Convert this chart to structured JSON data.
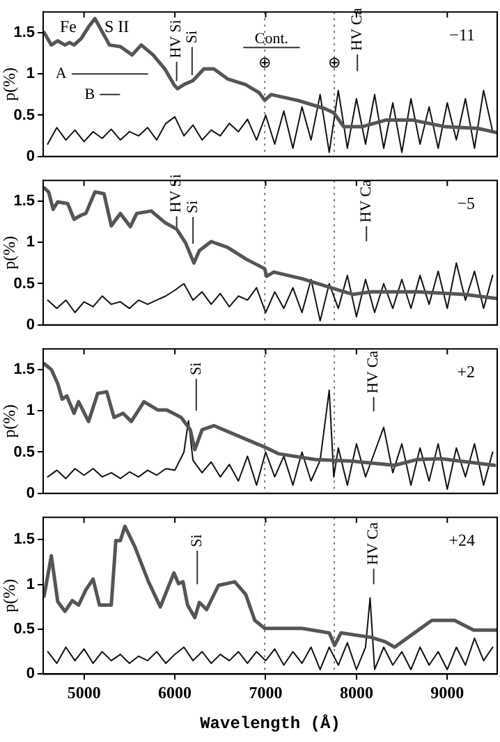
{
  "chart_data": [
    {
      "type": "line",
      "xlim": [
        4550,
        9550
      ],
      "xticks": [
        5000,
        6000,
        7000,
        8000,
        9000
      ],
      "ylim": [
        0,
        1.75
      ],
      "yticks": [
        0,
        0.5,
        1,
        1.5
      ],
      "ylabel": "p(%)",
      "tick_labels": "y",
      "legend": false,
      "grid": false,
      "marker": "none",
      "ref_lines": [
        {
          "axis": "x",
          "value": 6990,
          "color": "#777777",
          "line_style": "dotted"
        },
        {
          "axis": "x",
          "value": 7756,
          "color": "#777777",
          "line_style": "dotted"
        }
      ],
      "series": [
        {
          "color": "#555555",
          "x": [
            4560,
            4640,
            4710,
            4790,
            4840,
            4890,
            4970,
            5050,
            5120,
            5170,
            5280,
            5400,
            5530,
            5630,
            5760,
            5890,
            5990,
            6030,
            6100,
            6200,
            6320,
            6430,
            6580,
            6780,
            6930,
            6990,
            7060,
            7350,
            7650,
            7750,
            7860,
            8060,
            8320,
            8620,
            8980,
            9340,
            9540
          ],
          "values": [
            1.5,
            1.35,
            1.4,
            1.35,
            1.38,
            1.35,
            1.43,
            1.57,
            1.67,
            1.57,
            1.35,
            1.33,
            1.23,
            1.35,
            1.23,
            1.06,
            0.87,
            0.82,
            0.87,
            0.92,
            1.06,
            1.06,
            0.94,
            0.87,
            0.77,
            0.68,
            0.75,
            0.68,
            0.58,
            0.53,
            0.36,
            0.36,
            0.44,
            0.44,
            0.36,
            0.34,
            0.29
          ]
        },
        {
          "color": "#111111",
          "x": [
            4600,
            4700,
            4800,
            4900,
            5000,
            5100,
            5200,
            5300,
            5400,
            5500,
            5600,
            5700,
            5800,
            5900,
            6000,
            6100,
            6200,
            6300,
            6400,
            6500,
            6600,
            6700,
            6800,
            6900,
            7000,
            7100,
            7200,
            7300,
            7400,
            7500,
            7600,
            7700,
            7800,
            7900,
            8000,
            8100,
            8200,
            8300,
            8400,
            8500,
            8600,
            8700,
            8800,
            8900,
            9000,
            9100,
            9200,
            9300,
            9400,
            9500
          ],
          "values": [
            0.15,
            0.35,
            0.2,
            0.32,
            0.18,
            0.3,
            0.22,
            0.33,
            0.2,
            0.3,
            0.25,
            0.35,
            0.2,
            0.4,
            0.48,
            0.25,
            0.38,
            0.2,
            0.32,
            0.25,
            0.4,
            0.3,
            0.45,
            0.2,
            0.5,
            0.15,
            0.55,
            0.1,
            0.6,
            0.2,
            0.75,
            0.05,
            0.8,
            0.1,
            0.7,
            0.15,
            0.75,
            0.1,
            0.65,
            0.05,
            0.7,
            0.15,
            0.6,
            0.1,
            0.65,
            0.2,
            0.7,
            0.1,
            0.8,
            0.3
          ]
        },
        {
          "name": "A",
          "color": "#333333",
          "x": [
            4870,
            5700
          ],
          "values": [
            1.0,
            1.0
          ]
        },
        {
          "name": "B",
          "color": "#333333",
          "x": [
            5180,
            5390
          ],
          "values": [
            0.75,
            0.75
          ]
        },
        {
          "color": "#333333",
          "x": [
            6760,
            7370
          ],
          "values": [
            1.32,
            1.32
          ]
        },
        {
          "color": "#333333",
          "x": [
            6020,
            6020
          ],
          "values": [
            0.92,
            1.14
          ]
        },
        {
          "color": "#333333",
          "x": [
            6190,
            6190
          ],
          "values": [
            0.99,
            1.32
          ]
        },
        {
          "color": "#333333",
          "x": [
            8010,
            8010
          ],
          "values": [
            1.04,
            1.23
          ]
        }
      ],
      "annotations": [
        "Fe",
        "S II",
        {
          "text": "Cont.",
          "x": 7065,
          "y": 1.42
        },
        {
          "text": "⊕",
          "x": 6990,
          "y": 1.13
        },
        {
          "text": "⊕",
          "x": 7756,
          "y": 1.13
        },
        {
          "text": "HV Si",
          "x": 6020,
          "y": 1.14
        },
        {
          "text": "Si",
          "x": 6190,
          "y": 1.32
        },
        {
          "text": "HV Ca",
          "x": 8010,
          "y": 1.23
        },
        "−11"
      ]
    },
    {
      "type": "line",
      "xlim": [
        4550,
        9550
      ],
      "xticks": [
        5000,
        6000,
        7000,
        8000,
        9000
      ],
      "ylim": [
        0,
        1.75
      ],
      "yticks": [
        0,
        0.5,
        1,
        1.5
      ],
      "ylabel": "p(%)",
      "tick_labels": "y",
      "legend": false,
      "grid": false,
      "marker": "none",
      "ref_lines": [
        {
          "axis": "x",
          "value": 6990,
          "color": "#777777",
          "line_style": "dotted"
        },
        {
          "axis": "x",
          "value": 7756,
          "color": "#777777",
          "line_style": "dotted"
        }
      ],
      "series": [
        {
          "color": "#555555",
          "x": [
            4560,
            4610,
            4660,
            4710,
            4820,
            4890,
            4970,
            5020,
            5120,
            5220,
            5300,
            5400,
            5510,
            5580,
            5740,
            5890,
            6020,
            6120,
            6210,
            6270,
            6400,
            6580,
            6780,
            6990,
            7010,
            7090,
            7400,
            7750,
            7960,
            8160,
            8670,
            9190,
            9540
          ],
          "values": [
            1.66,
            1.61,
            1.4,
            1.49,
            1.47,
            1.28,
            1.33,
            1.35,
            1.61,
            1.59,
            1.2,
            1.35,
            1.19,
            1.35,
            1.38,
            1.24,
            1.16,
            0.99,
            0.75,
            0.9,
            1.01,
            0.94,
            0.8,
            0.68,
            0.59,
            0.64,
            0.56,
            0.44,
            0.37,
            0.4,
            0.4,
            0.37,
            0.32
          ]
        },
        {
          "color": "#111111",
          "x": [
            4600,
            4700,
            4800,
            4900,
            5000,
            5100,
            5200,
            5300,
            5400,
            5500,
            5600,
            5700,
            5800,
            5900,
            6000,
            6100,
            6200,
            6300,
            6400,
            6500,
            6600,
            6700,
            6800,
            6900,
            7000,
            7100,
            7200,
            7300,
            7400,
            7500,
            7600,
            7700,
            7800,
            7900,
            8000,
            8100,
            8200,
            8300,
            8400,
            8500,
            8600,
            8700,
            8800,
            8900,
            9000,
            9100,
            9200,
            9300,
            9400,
            9500
          ],
          "values": [
            0.3,
            0.2,
            0.3,
            0.15,
            0.28,
            0.22,
            0.35,
            0.25,
            0.28,
            0.2,
            0.3,
            0.25,
            0.3,
            0.35,
            0.42,
            0.5,
            0.3,
            0.4,
            0.25,
            0.38,
            0.22,
            0.35,
            0.3,
            0.45,
            0.15,
            0.4,
            0.2,
            0.45,
            0.15,
            0.55,
            0.05,
            0.5,
            0.2,
            0.6,
            0.1,
            0.55,
            0.15,
            0.5,
            0.2,
            0.55,
            0.2,
            0.6,
            0.25,
            0.65,
            0.2,
            0.75,
            0.3,
            0.65,
            0.2,
            0.6
          ]
        },
        {
          "color": "#333333",
          "x": [
            6020,
            6020
          ],
          "values": [
            1.16,
            1.31
          ]
        },
        {
          "color": "#333333",
          "x": [
            6200,
            6200
          ],
          "values": [
            0.99,
            1.3
          ]
        },
        {
          "color": "#333333",
          "x": [
            8110,
            8110
          ],
          "values": [
            1.02,
            1.19
          ]
        }
      ],
      "annotations": [
        {
          "text": "HV Si",
          "x": 6020,
          "y": 1.31
        },
        {
          "text": "Si",
          "x": 6200,
          "y": 1.3
        },
        {
          "text": "HV Ca",
          "x": 8110,
          "y": 1.19
        },
        "−5"
      ]
    },
    {
      "type": "line",
      "xlim": [
        4550,
        9550
      ],
      "xticks": [
        5000,
        6000,
        7000,
        8000,
        9000
      ],
      "ylim": [
        0,
        1.75
      ],
      "yticks": [
        0,
        0.5,
        1,
        1.5
      ],
      "ylabel": "p(%)",
      "tick_labels": "y",
      "legend": false,
      "grid": false,
      "marker": "none",
      "ref_lines": [
        {
          "axis": "x",
          "value": 6990,
          "color": "#777777",
          "line_style": "dotted"
        },
        {
          "axis": "x",
          "value": 7756,
          "color": "#777777",
          "line_style": "dotted"
        }
      ],
      "series": [
        {
          "color": "#555555",
          "x": [
            4560,
            4640,
            4710,
            4760,
            4810,
            4890,
            4940,
            5050,
            5150,
            5250,
            5330,
            5430,
            5520,
            5660,
            5810,
            5910,
            6070,
            6170,
            6220,
            6300,
            6430,
            6730,
            6990,
            7140,
            7550,
            7960,
            8420,
            8670,
            8930,
            9520
          ],
          "values": [
            1.57,
            1.5,
            1.33,
            1.14,
            1.18,
            0.97,
            1.11,
            0.87,
            1.21,
            1.23,
            0.92,
            0.97,
            0.87,
            1.11,
            1.01,
            1.01,
            0.92,
            0.77,
            0.53,
            0.77,
            0.82,
            0.68,
            0.56,
            0.48,
            0.41,
            0.39,
            0.34,
            0.41,
            0.42,
            0.34
          ]
        },
        {
          "color": "#111111",
          "x": [
            4600,
            4700,
            4800,
            4900,
            5000,
            5100,
            5200,
            5300,
            5400,
            5500,
            5600,
            5700,
            5800,
            5900,
            6000,
            6100,
            6150,
            6200,
            6300,
            6400,
            6500,
            6600,
            6700,
            6800,
            6900,
            7000,
            7100,
            7200,
            7300,
            7400,
            7500,
            7600,
            7700,
            7750,
            7800,
            7900,
            8000,
            8100,
            8200,
            8300,
            8400,
            8500,
            8600,
            8700,
            8800,
            8900,
            9000,
            9100,
            9200,
            9300,
            9400,
            9500
          ],
          "values": [
            0.2,
            0.28,
            0.18,
            0.3,
            0.22,
            0.3,
            0.2,
            0.25,
            0.18,
            0.26,
            0.2,
            0.28,
            0.22,
            0.3,
            0.28,
            0.5,
            0.88,
            0.4,
            0.25,
            0.38,
            0.2,
            0.35,
            0.15,
            0.45,
            0.1,
            0.5,
            0.2,
            0.45,
            0.1,
            0.5,
            0.15,
            0.4,
            1.25,
            0.2,
            0.55,
            0.1,
            0.6,
            0.2,
            0.5,
            0.8,
            0.25,
            0.6,
            0.1,
            0.55,
            0.15,
            0.6,
            0.05,
            0.55,
            0.2,
            0.6,
            0.1,
            0.5
          ]
        },
        {
          "color": "#333333",
          "x": [
            6236,
            6236
          ],
          "values": [
            1.01,
            1.38
          ]
        },
        {
          "color": "#333333",
          "x": [
            8190,
            8190
          ],
          "values": [
            1.0,
            1.16
          ]
        }
      ],
      "annotations": [
        {
          "text": "Si",
          "x": 6236,
          "y": 1.38
        },
        {
          "text": "HV Ca",
          "x": 8190,
          "y": 1.16
        },
        "+2"
      ]
    },
    {
      "type": "line",
      "xlim": [
        4550,
        9550
      ],
      "xticks": [
        5000,
        6000,
        7000,
        8000,
        9000
      ],
      "ylim": [
        0,
        1.75
      ],
      "yticks": [
        0,
        0.5,
        1,
        1.5
      ],
      "ylabel": "p(%)",
      "xlabel": "Wavelength (Å)",
      "legend": false,
      "grid": false,
      "marker": "none",
      "ref_lines": [
        {
          "axis": "x",
          "value": 6990,
          "color": "#777777",
          "line_style": "dotted"
        },
        {
          "axis": "x",
          "value": 7756,
          "color": "#777777",
          "line_style": "dotted"
        }
      ],
      "series": [
        {
          "color": "#555555",
          "x": [
            4560,
            4640,
            4710,
            4790,
            4870,
            4940,
            5020,
            5100,
            5170,
            5300,
            5350,
            5400,
            5450,
            5560,
            5710,
            5840,
            5990,
            6040,
            6090,
            6140,
            6220,
            6270,
            6350,
            6480,
            6660,
            6780,
            6880,
            6990,
            7140,
            7400,
            7700,
            7760,
            7830,
            8160,
            8320,
            8420,
            8570,
            8830,
            9080,
            9290,
            9540
          ],
          "values": [
            0.87,
            1.32,
            0.81,
            0.7,
            0.82,
            0.77,
            0.94,
            1.06,
            0.77,
            0.77,
            1.49,
            1.49,
            1.65,
            1.42,
            1.03,
            0.75,
            1.13,
            1.01,
            1.03,
            0.77,
            0.63,
            0.8,
            0.72,
            0.99,
            1.03,
            0.89,
            0.6,
            0.51,
            0.51,
            0.51,
            0.46,
            0.32,
            0.46,
            0.41,
            0.36,
            0.3,
            0.41,
            0.6,
            0.6,
            0.49,
            0.49
          ]
        },
        {
          "color": "#111111",
          "x": [
            4600,
            4700,
            4800,
            4900,
            5000,
            5100,
            5200,
            5300,
            5400,
            5500,
            5600,
            5700,
            5800,
            5900,
            6000,
            6100,
            6200,
            6300,
            6400,
            6500,
            6600,
            6700,
            6800,
            6900,
            7000,
            7100,
            7200,
            7300,
            7400,
            7500,
            7600,
            7700,
            7800,
            7900,
            8000,
            8100,
            8150,
            8200,
            8300,
            8400,
            8500,
            8600,
            8700,
            8800,
            8900,
            9000,
            9100,
            9200,
            9300,
            9400,
            9500
          ],
          "values": [
            0.25,
            0.12,
            0.3,
            0.15,
            0.28,
            0.12,
            0.25,
            0.15,
            0.22,
            0.12,
            0.2,
            0.15,
            0.25,
            0.12,
            0.22,
            0.3,
            0.15,
            0.25,
            0.12,
            0.22,
            0.15,
            0.25,
            0.12,
            0.25,
            0.15,
            0.28,
            0.1,
            0.25,
            0.12,
            0.3,
            0.05,
            0.3,
            0.1,
            0.35,
            0.05,
            0.3,
            0.85,
            0.05,
            0.3,
            0.1,
            0.25,
            0.05,
            0.3,
            0.1,
            0.25,
            0.05,
            0.3,
            0.1,
            0.4,
            0.15,
            0.3
          ]
        },
        {
          "color": "#333333",
          "x": [
            6247,
            6247
          ],
          "values": [
            1.01,
            1.37
          ]
        },
        {
          "color": "#333333",
          "x": [
            8190,
            8190
          ],
          "values": [
            1.01,
            1.17
          ]
        }
      ],
      "annotations": [
        {
          "text": "Si",
          "x": 6247,
          "y": 1.37
        },
        {
          "text": "HV Ca",
          "x": 8190,
          "y": 1.17
        },
        "+24"
      ]
    }
  ]
}
